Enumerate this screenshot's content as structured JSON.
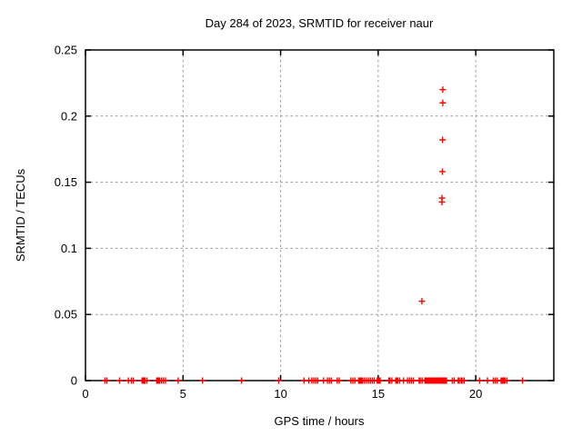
{
  "chart_data": {
    "type": "scatter",
    "title": "Day 284 of 2023, SRMTID for receiver naur",
    "xlabel": "GPS time / hours",
    "ylabel": "SRMTID / TECUs",
    "xlim": [
      0,
      24
    ],
    "ylim": [
      0,
      0.25
    ],
    "xticks": [
      {
        "v": 0,
        "label": "0"
      },
      {
        "v": 5,
        "label": "5"
      },
      {
        "v": 10,
        "label": "10"
      },
      {
        "v": 15,
        "label": "15"
      },
      {
        "v": 20,
        "label": "20"
      }
    ],
    "yticks": [
      {
        "v": 0,
        "label": "0"
      },
      {
        "v": 0.05,
        "label": "0.05"
      },
      {
        "v": 0.1,
        "label": "0.1"
      },
      {
        "v": 0.15,
        "label": "0.15"
      },
      {
        "v": 0.2,
        "label": "0.2"
      },
      {
        "v": 0.25,
        "label": "0.25"
      }
    ],
    "grid": true,
    "legend_position": "none",
    "colors": {
      "marker": "#ff0000",
      "axis": "#000000",
      "grid": "#9a9a9a",
      "background": "#ffffff"
    },
    "marker": {
      "shape": "plus",
      "size": 7
    },
    "series": [
      {
        "name": "SRMTID",
        "points": [
          [
            1.0,
            0
          ],
          [
            1.1,
            0
          ],
          [
            1.75,
            0
          ],
          [
            2.2,
            0
          ],
          [
            2.35,
            0
          ],
          [
            2.45,
            0
          ],
          [
            2.9,
            0
          ],
          [
            2.95,
            0
          ],
          [
            3.0,
            0
          ],
          [
            3.05,
            0
          ],
          [
            3.15,
            0
          ],
          [
            3.65,
            0
          ],
          [
            3.7,
            0
          ],
          [
            3.75,
            0
          ],
          [
            3.8,
            0
          ],
          [
            3.9,
            0
          ],
          [
            4.0,
            0
          ],
          [
            4.1,
            0
          ],
          [
            4.75,
            0
          ],
          [
            6.0,
            0
          ],
          [
            8.0,
            0
          ],
          [
            9.9,
            0
          ],
          [
            11.2,
            0
          ],
          [
            11.45,
            0
          ],
          [
            11.6,
            0
          ],
          [
            11.7,
            0
          ],
          [
            11.8,
            0
          ],
          [
            11.9,
            0
          ],
          [
            12.2,
            0
          ],
          [
            12.4,
            0
          ],
          [
            12.5,
            0
          ],
          [
            12.6,
            0
          ],
          [
            12.9,
            0
          ],
          [
            13.0,
            0
          ],
          [
            13.6,
            0
          ],
          [
            13.7,
            0
          ],
          [
            13.8,
            0
          ],
          [
            14.0,
            0
          ],
          [
            14.05,
            0
          ],
          [
            14.1,
            0
          ],
          [
            14.15,
            0
          ],
          [
            14.2,
            0
          ],
          [
            14.3,
            0
          ],
          [
            14.4,
            0
          ],
          [
            14.5,
            0
          ],
          [
            14.6,
            0
          ],
          [
            14.7,
            0
          ],
          [
            14.8,
            0
          ],
          [
            14.95,
            0
          ],
          [
            15.0,
            0
          ],
          [
            15.05,
            0
          ],
          [
            15.1,
            0
          ],
          [
            15.55,
            0
          ],
          [
            15.6,
            0
          ],
          [
            15.7,
            0
          ],
          [
            15.9,
            0
          ],
          [
            15.95,
            0
          ],
          [
            16.0,
            0
          ],
          [
            16.1,
            0
          ],
          [
            16.3,
            0
          ],
          [
            16.5,
            0
          ],
          [
            16.6,
            0
          ],
          [
            16.7,
            0
          ],
          [
            16.8,
            0
          ],
          [
            17.1,
            0
          ],
          [
            17.15,
            0
          ],
          [
            17.25,
            0
          ],
          [
            17.4,
            0
          ],
          [
            17.45,
            0
          ],
          [
            17.5,
            0
          ],
          [
            17.55,
            0
          ],
          [
            17.6,
            0
          ],
          [
            17.65,
            0
          ],
          [
            17.7,
            0
          ],
          [
            17.75,
            0
          ],
          [
            17.8,
            0
          ],
          [
            17.85,
            0
          ],
          [
            17.9,
            0
          ],
          [
            17.95,
            0
          ],
          [
            18.0,
            0
          ],
          [
            18.05,
            0
          ],
          [
            18.1,
            0
          ],
          [
            18.15,
            0
          ],
          [
            18.2,
            0
          ],
          [
            18.25,
            0
          ],
          [
            18.3,
            0
          ],
          [
            18.35,
            0
          ],
          [
            18.4,
            0
          ],
          [
            18.45,
            0
          ],
          [
            18.5,
            0
          ],
          [
            18.8,
            0
          ],
          [
            18.9,
            0
          ],
          [
            19.1,
            0
          ],
          [
            19.15,
            0
          ],
          [
            19.25,
            0
          ],
          [
            19.3,
            0
          ],
          [
            19.4,
            0
          ],
          [
            20.2,
            0
          ],
          [
            20.6,
            0
          ],
          [
            20.9,
            0
          ],
          [
            21.0,
            0
          ],
          [
            21.1,
            0
          ],
          [
            21.3,
            0
          ],
          [
            21.35,
            0
          ],
          [
            21.4,
            0
          ],
          [
            21.45,
            0
          ],
          [
            21.5,
            0
          ],
          [
            21.6,
            0
          ],
          [
            22.4,
            0
          ],
          [
            17.24,
            0.06
          ],
          [
            18.27,
            0.135
          ],
          [
            18.27,
            0.138
          ],
          [
            18.29,
            0.158
          ],
          [
            18.3,
            0.182
          ],
          [
            18.31,
            0.21
          ],
          [
            18.31,
            0.22
          ]
        ]
      }
    ]
  }
}
